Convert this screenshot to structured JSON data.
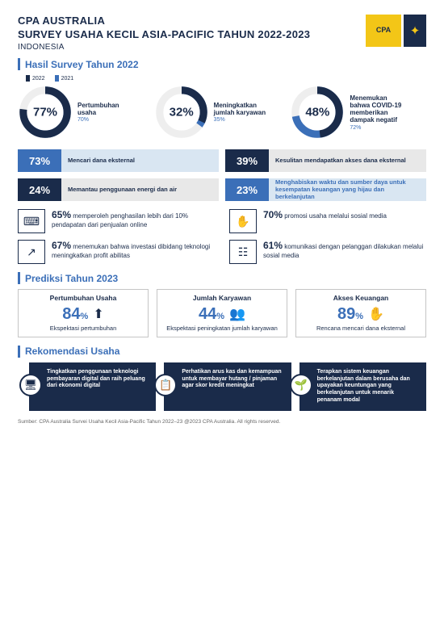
{
  "header": {
    "org": "CPA AUSTRALIA",
    "title": "SURVEY USAHA KECIL ASIA-PACIFIC TAHUN 2022-2023",
    "subtitle": "INDONESIA",
    "logo_text": "CPA"
  },
  "colors": {
    "dark": "#1a2b4a",
    "blue": "#3b6fb8",
    "yellow": "#f3c617",
    "lightblue": "#d9e6f2",
    "grey": "#e8e8e8"
  },
  "s1": {
    "title": "Hasil Survey Tahun 2022",
    "legend_a": "2022",
    "legend_b": "2021"
  },
  "donuts": [
    {
      "pct": "77%",
      "val": 77,
      "prev_val": 70,
      "label": "Pertumbuhan usaha",
      "prev": "70%"
    },
    {
      "pct": "32%",
      "val": 32,
      "prev_val": 35,
      "label": "Meningkatkan jumlah karyawan",
      "prev": "35%"
    },
    {
      "pct": "48%",
      "val": 48,
      "prev_val": 72,
      "label": "Menemukan bahwa COVID-19 memberikan dampak negatif",
      "prev": "72%"
    }
  ],
  "bars": [
    {
      "pct": "73%",
      "text": "Mencari dana eksternal",
      "style": "blue"
    },
    {
      "pct": "39%",
      "text": "Kesulitan mendapatkan akses dana eksternal",
      "style": "dark"
    },
    {
      "pct": "24%",
      "text": "Memantau penggunaan energi dan air",
      "style": "dark"
    },
    {
      "pct": "23%",
      "text": "Menghabiskan waktu dan sumber daya untuk kesempatan keuangan yang hijau dan berkelanjutan",
      "style": "blue b2"
    }
  ],
  "facts": [
    {
      "pct": "65%",
      "text": "memperoleh penghasilan lebih dari 10% pendapatan dari penjualan online",
      "icon": "⌨"
    },
    {
      "pct": "70%",
      "text": "promosi usaha melalui sosial media",
      "icon": "✋"
    },
    {
      "pct": "67%",
      "text": "menemukan bahwa investasi dibidang teknologi meningkatkan profit abilitas",
      "icon": "↗"
    },
    {
      "pct": "61%",
      "text": "komunikasi dengan pelanggan dilakukan melalui sosial media",
      "icon": "☷"
    }
  ],
  "s2": {
    "title": "Prediksi Tahun 2023"
  },
  "pred": [
    {
      "h": "Pertumbuhan Usaha",
      "pct": "84",
      "icon": "⬆",
      "sub": "Ekspektasi pertumbuhan"
    },
    {
      "h": "Jumlah Karyawan",
      "pct": "44",
      "icon": "👥",
      "sub": "Ekspektasi peningkatan jumlah karyawan"
    },
    {
      "h": "Akses Keuangan",
      "pct": "89",
      "icon": "✋",
      "sub": "Rencana mencari dana eksternal"
    }
  ],
  "s3": {
    "title": "Rekomendasi Usaha"
  },
  "recs": [
    {
      "icon": "🖥",
      "text": "Tingkatkan penggunaan teknologi pembayaran digital dan raih peluang dari ekonomi digital"
    },
    {
      "icon": "📋",
      "text": "Perhatikan arus kas dan kemampuan untuk membayar hutang / pinjaman agar skor kredit meningkat"
    },
    {
      "icon": "🌱",
      "text": "Terapkan sistem keuangan berkelanjutan dalam berusaha dan upayakan keuntungan yang berkelanjutan untuk menarik penanam modal"
    }
  ],
  "footer": "Sumber: CPA Australia  Survei Usaha Kecil Asia-Pacific Tahun 2022–23 @2023 CPA Australia. All rights reserved."
}
